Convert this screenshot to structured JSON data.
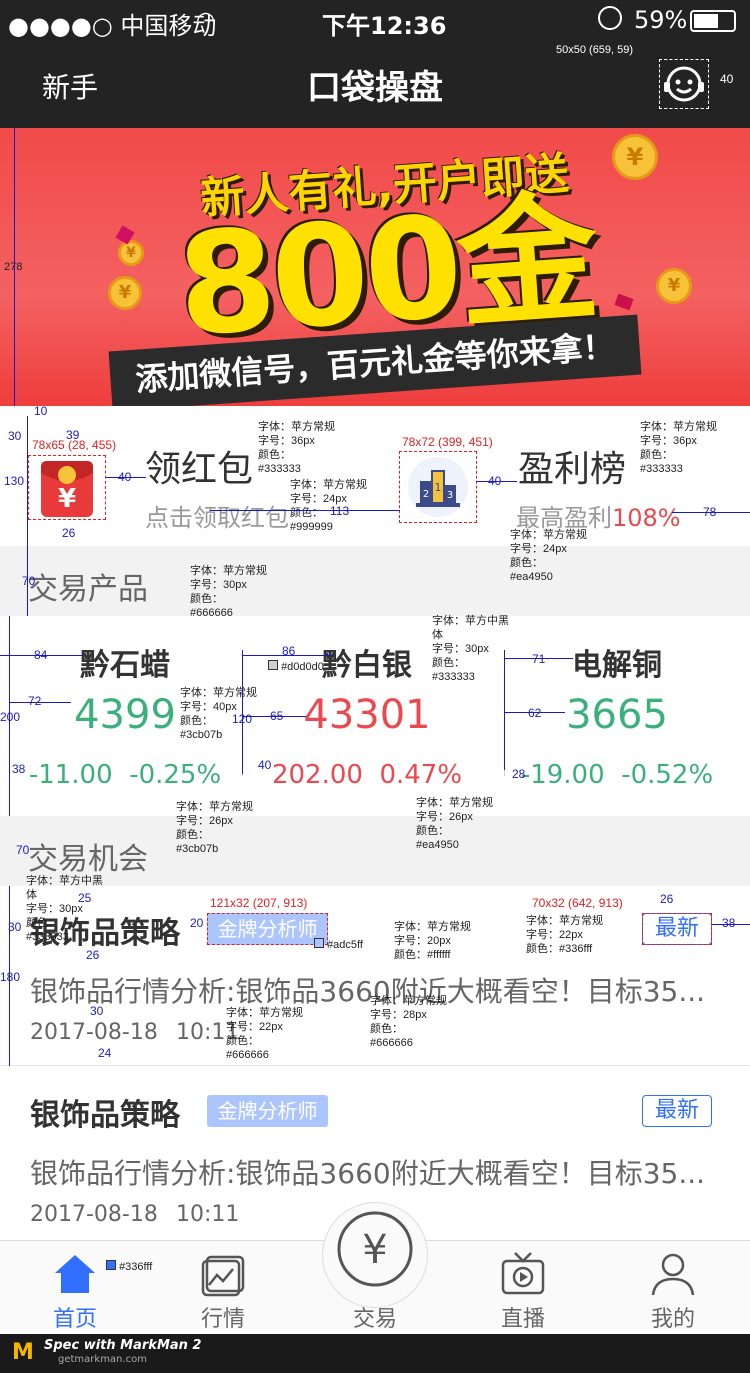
{
  "status_bar": {
    "carrier": "●●●●○ 中国移动",
    "time": "下午12:36",
    "battery": "59%"
  },
  "nav": {
    "left": "新手",
    "title": "口袋操盘",
    "support_icon": "customer-service-icon"
  },
  "banner": {
    "line1": "新人有礼,开户即送",
    "line2": "800金",
    "line3": "添加微信号，百元礼金等你来拿！"
  },
  "promo": {
    "red_packet": {
      "title": "领红包",
      "subtitle": "点击领取红包"
    },
    "leaderboard": {
      "title": "盈利榜",
      "subtitle_prefix": "最高盈利",
      "subtitle_value": "108%"
    }
  },
  "products_section": {
    "title": "交易产品"
  },
  "products": [
    {
      "name": "黔石蜡",
      "price": "4399",
      "change": "-11.00",
      "percent": "-0.25%",
      "color": "#3cb07b"
    },
    {
      "name": "黔白银",
      "price": "43301",
      "change": "202.00",
      "percent": "0.47%",
      "color": "#ea4950"
    },
    {
      "name": "电解铜",
      "price": "3665",
      "change": "-19.00",
      "percent": "-0.52%",
      "color": "#3cb07b"
    }
  ],
  "opportunities_section": {
    "title": "交易机会"
  },
  "articles": [
    {
      "title": "银饰品策略",
      "tag": "金牌分析师",
      "badge": "最新",
      "desc": "银饰品行情分析:银饰品3660附近大概看空！目标35...",
      "date": "2017-08-18",
      "time": "10:11"
    },
    {
      "title": "银饰品策略",
      "tag": "金牌分析师",
      "badge": "最新",
      "desc": "银饰品行情分析:银饰品3660附近大概看空！目标35...",
      "date": "2017-08-18",
      "time": "10:11"
    }
  ],
  "tabs": [
    {
      "label": "首页",
      "icon": "home-icon",
      "active": true
    },
    {
      "label": "行情",
      "icon": "chart-icon",
      "active": false
    },
    {
      "label": "交易",
      "icon": "yen-icon",
      "active": false
    },
    {
      "label": "直播",
      "icon": "tv-play-icon",
      "active": false
    },
    {
      "label": "我的",
      "icon": "user-icon",
      "active": false
    }
  ],
  "colors": {
    "accent": "#336fff",
    "green": "#3cb07b",
    "red": "#ea4950",
    "tag_bg": "#adc5ff",
    "divider": "#d0d0d0"
  },
  "footer": {
    "brand": "Spec with MarkMan 2",
    "url": "getmarkman.com"
  },
  "annotations": {
    "support_dim": "50x50 (659, 59)",
    "support_gap": "40",
    "banner_h": "278",
    "gap10": "10",
    "gap30": "30",
    "gap39": "39",
    "h130": "130",
    "icon1_dim": "78x65 (28, 455)",
    "gap40a": "40",
    "gap26a": "26",
    "title_font": "字体：苹方常规\n字号：36px\n颜色：\n#333333",
    "sub_font": "字体：苹方常规\n字号：24px\n颜色：\n#999999",
    "gap113": "113",
    "icon2_dim": "78x72 (399, 451)",
    "gap40b": "40",
    "title2_font": "字体：苹方常规\n字号：36px\n颜色：\n#333333",
    "gap78": "78",
    "sub2_font": "字体：苹方常规\n字号：24px\n颜色：\n#ea4950",
    "h70a": "70",
    "section_font": "字体：苹方常规\n字号：30px\n颜色：\n#666666",
    "prod_name_font": "字体：苹方中黑\n体\n字号：30px\n颜色：\n#333333",
    "gap84": "84",
    "gap86": "86",
    "divider_color": "#d0d0d0",
    "gap71": "71",
    "gap72": "72",
    "h200": "200",
    "price_font": "字体：苹方常规\n字号：40px\n颜色：\n#3cb07b",
    "h120": "120",
    "gap65": "65",
    "gap62": "62",
    "gap38a": "38",
    "gap40c": "40",
    "gap28": "28",
    "chg_font_green": "字体：苹方常规\n字号：26px\n颜色：\n#3cb07b",
    "chg_font_red": "字体：苹方常规\n字号：26px\n颜色：\n#ea4950",
    "h70b": "70",
    "art_title_font": "字体：苹方中黑\n体\n字号：30px\n颜色：\n#333333",
    "tag_dim": "121x32 (207, 913)",
    "gap20": "20",
    "tag_bg": "#adc5ff",
    "tag_font": "字体：苹方常规\n字号：20px\n颜色：#ffffff",
    "badge_dim": "70x32 (642, 913)",
    "gap26b": "26",
    "gap38b": "38",
    "badge_font": "字体：苹方常规\n字号：22px\n颜色：#336fff",
    "h30": "30",
    "h180": "180",
    "gap25": "25",
    "gap26c": "26",
    "desc_font": "字体：苹方常规\n字号：28px\n颜色：\n#666666",
    "gap30b": "30",
    "date_font": "字体：苹方常规\n字号：22px\n颜色：\n#666666",
    "gap24": "24",
    "tab_color": "#336fff"
  }
}
